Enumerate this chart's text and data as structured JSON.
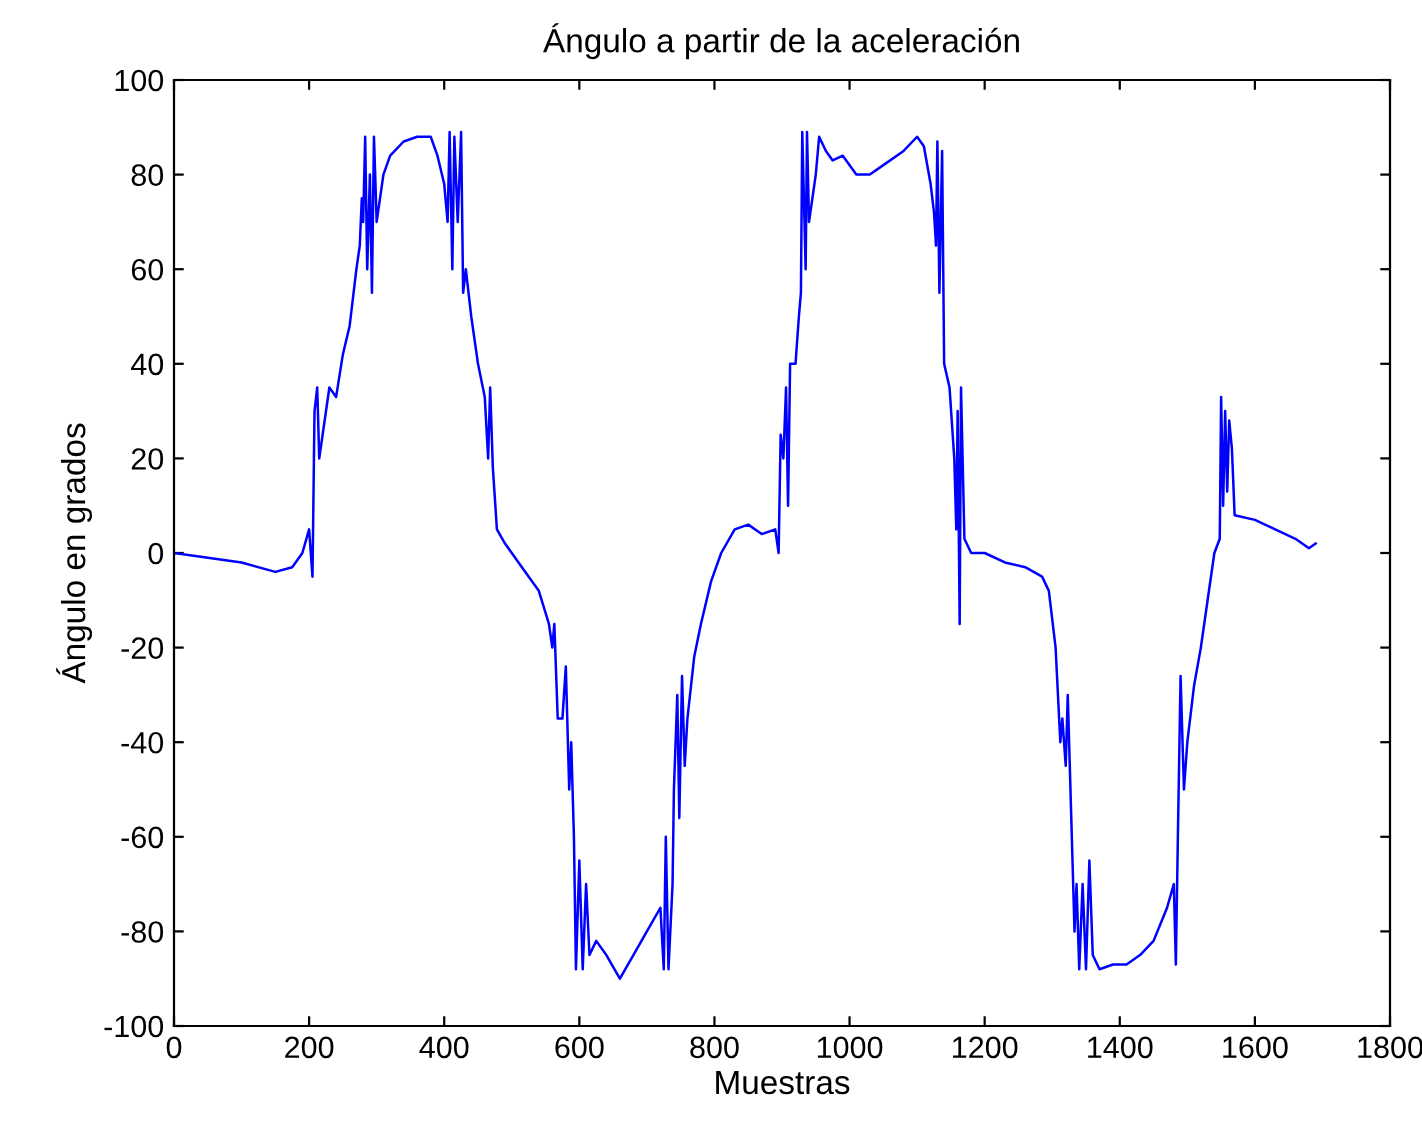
{
  "chart_data": {
    "type": "line",
    "title": "Ángulo a partir de la aceleración",
    "xlabel": "Muestras",
    "ylabel": "Ángulo en grados",
    "xlim": [
      0,
      1800
    ],
    "xticks": [
      0,
      200,
      400,
      600,
      800,
      1000,
      1200,
      1400,
      1600,
      1800
    ],
    "ylim": [
      -100,
      100
    ],
    "yticks": [
      -100,
      -80,
      -60,
      -40,
      -20,
      0,
      20,
      40,
      60,
      80,
      100
    ],
    "grid": false,
    "marker": "none",
    "line_style": "solid",
    "series": [
      {
        "color": "#0000ff",
        "x": [
          0,
          50,
          100,
          150,
          175,
          190,
          200,
          205,
          208,
          212,
          215,
          220,
          230,
          240,
          250,
          260,
          270,
          275,
          278,
          280,
          283,
          286,
          290,
          293,
          296,
          300,
          310,
          320,
          340,
          360,
          380,
          390,
          400,
          405,
          408,
          412,
          415,
          420,
          425,
          428,
          432,
          440,
          450,
          460,
          465,
          468,
          472,
          478,
          490,
          500,
          520,
          540,
          555,
          560,
          563,
          568,
          575,
          580,
          585,
          588,
          592,
          595,
          600,
          605,
          610,
          615,
          625,
          640,
          660,
          680,
          700,
          720,
          725,
          728,
          732,
          738,
          740,
          745,
          748,
          752,
          756,
          760,
          770,
          780,
          795,
          810,
          830,
          850,
          870,
          890,
          895,
          898,
          902,
          906,
          909,
          912,
          920,
          925,
          928,
          930,
          935,
          937,
          940,
          945,
          950,
          955,
          965,
          975,
          990,
          1010,
          1030,
          1050,
          1080,
          1100,
          1110,
          1120,
          1125,
          1128,
          1130,
          1133,
          1137,
          1140,
          1148,
          1155,
          1158,
          1160,
          1163,
          1165,
          1170,
          1180,
          1200,
          1230,
          1260,
          1285,
          1295,
          1305,
          1312,
          1315,
          1320,
          1323,
          1328,
          1333,
          1336,
          1340,
          1345,
          1350,
          1355,
          1360,
          1370,
          1390,
          1410,
          1430,
          1450,
          1470,
          1480,
          1483,
          1486,
          1490,
          1495,
          1500,
          1510,
          1520,
          1530,
          1540,
          1548,
          1550,
          1553,
          1556,
          1559,
          1562,
          1566,
          1570,
          1600,
          1630,
          1660,
          1680,
          1690
        ],
        "values": [
          0,
          -1,
          -2,
          -4,
          -3,
          0,
          5,
          -5,
          30,
          35,
          20,
          25,
          35,
          33,
          42,
          48,
          60,
          65,
          75,
          70,
          88,
          60,
          80,
          55,
          88,
          70,
          80,
          84,
          87,
          88,
          88,
          84,
          78,
          70,
          89,
          60,
          88,
          70,
          89,
          55,
          60,
          50,
          40,
          33,
          20,
          35,
          18,
          5,
          2,
          0,
          -4,
          -8,
          -15,
          -20,
          -15,
          -35,
          -35,
          -24,
          -50,
          -40,
          -60,
          -88,
          -65,
          -88,
          -70,
          -85,
          -82,
          -85,
          -90,
          -85,
          -80,
          -75,
          -88,
          -60,
          -88,
          -70,
          -50,
          -30,
          -56,
          -26,
          -45,
          -35,
          -22,
          -15,
          -6,
          0,
          5,
          6,
          4,
          5,
          0,
          25,
          20,
          35,
          10,
          40,
          40,
          50,
          55,
          89,
          60,
          89,
          70,
          75,
          80,
          88,
          85,
          83,
          84,
          80,
          80,
          82,
          85,
          88,
          86,
          78,
          72,
          65,
          87,
          55,
          85,
          40,
          35,
          20,
          5,
          30,
          -15,
          35,
          3,
          0,
          0,
          -2,
          -3,
          -5,
          -8,
          -20,
          -40,
          -35,
          -45,
          -30,
          -55,
          -80,
          -70,
          -88,
          -70,
          -88,
          -65,
          -85,
          -88,
          -87,
          -87,
          -85,
          -82,
          -75,
          -70,
          -87,
          -60,
          -26,
          -50,
          -40,
          -28,
          -20,
          -10,
          0,
          3,
          33,
          10,
          30,
          13,
          28,
          22,
          8,
          7,
          5,
          3,
          1,
          2
        ]
      }
    ]
  }
}
